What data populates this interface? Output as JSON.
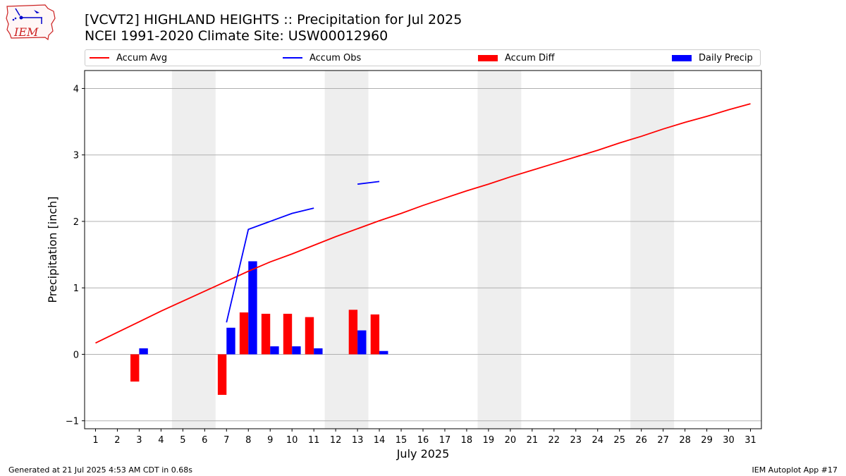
{
  "header": {
    "title_line1": "[VCVT2] HIGHLAND HEIGHTS :: Precipitation for Jul 2025",
    "title_line2": "NCEI 1991-2020 Climate Site: USW00012960",
    "logo_text": "IEM"
  },
  "footer": {
    "generated": "Generated at 21 Jul 2025 4:53 AM CDT in 0.68s",
    "app": "IEM Autoplot App #17"
  },
  "colors": {
    "avg": "#ff0000",
    "obs": "#0000ff",
    "diff": "#ff0000",
    "daily": "#0000ff",
    "weekend_band": "#eeeeee",
    "grid": "#b0b0b0"
  },
  "chart_data": {
    "type": "bar",
    "xlabel": "July 2025",
    "ylabel": "Precipitation [inch]",
    "ylim": [
      -1.12,
      4.27
    ],
    "xlim": [
      0.5,
      31.5
    ],
    "yticks": [
      -1,
      0,
      1,
      2,
      3,
      4
    ],
    "ytick_labels": [
      "−1",
      "0",
      "1",
      "2",
      "3",
      "4"
    ],
    "x_categories": [
      "1",
      "2",
      "3",
      "4",
      "5",
      "6",
      "7",
      "8",
      "9",
      "10",
      "11",
      "12",
      "13",
      "14",
      "15",
      "16",
      "17",
      "18",
      "19",
      "20",
      "21",
      "22",
      "23",
      "24",
      "25",
      "26",
      "27",
      "28",
      "29",
      "30",
      "31"
    ],
    "grid": "y",
    "legend_position": "top",
    "weekend_bands": [
      [
        4.5,
        6.5
      ],
      [
        11.5,
        13.5
      ],
      [
        18.5,
        20.5
      ],
      [
        25.5,
        27.5
      ]
    ],
    "legend": [
      {
        "name": "Accum Avg",
        "kind": "line",
        "color": "#ff0000"
      },
      {
        "name": "Accum Obs",
        "kind": "line",
        "color": "#0000ff"
      },
      {
        "name": "Accum Diff",
        "kind": "bar",
        "color": "#ff0000"
      },
      {
        "name": "Daily Precip",
        "kind": "bar",
        "color": "#0000ff"
      }
    ],
    "series": [
      {
        "name": "Accum Avg",
        "type": "line",
        "x": [
          1,
          2,
          3,
          4,
          5,
          6,
          7,
          8,
          9,
          10,
          11,
          12,
          13,
          14,
          15,
          16,
          17,
          18,
          19,
          20,
          21,
          22,
          23,
          24,
          25,
          26,
          27,
          28,
          29,
          30,
          31
        ],
        "values": [
          0.17,
          0.33,
          0.49,
          0.65,
          0.8,
          0.95,
          1.1,
          1.25,
          1.39,
          1.51,
          1.64,
          1.77,
          1.89,
          2.01,
          2.12,
          2.24,
          2.35,
          2.46,
          2.56,
          2.67,
          2.77,
          2.87,
          2.97,
          3.07,
          3.18,
          3.28,
          3.39,
          3.49,
          3.58,
          3.68,
          3.77
        ]
      },
      {
        "name": "Accum Obs",
        "type": "line",
        "segments": [
          {
            "x": [
              7,
              8,
              9,
              10,
              11
            ],
            "values": [
              0.48,
              1.88,
              2.0,
              2.12,
              2.2
            ]
          },
          {
            "x": [
              13,
              14
            ],
            "values": [
              2.56,
              2.6
            ]
          }
        ]
      },
      {
        "name": "Accum Diff",
        "type": "bar",
        "x": [
          3,
          7,
          8,
          9,
          10,
          11,
          13,
          14
        ],
        "values": [
          -0.41,
          -0.61,
          0.63,
          0.61,
          0.61,
          0.56,
          0.67,
          0.6
        ]
      },
      {
        "name": "Daily Precip",
        "type": "bar",
        "x": [
          3,
          7,
          8,
          9,
          10,
          11,
          13,
          14
        ],
        "values": [
          0.09,
          0.4,
          1.4,
          0.12,
          0.12,
          0.09,
          0.36,
          0.05
        ]
      }
    ]
  }
}
